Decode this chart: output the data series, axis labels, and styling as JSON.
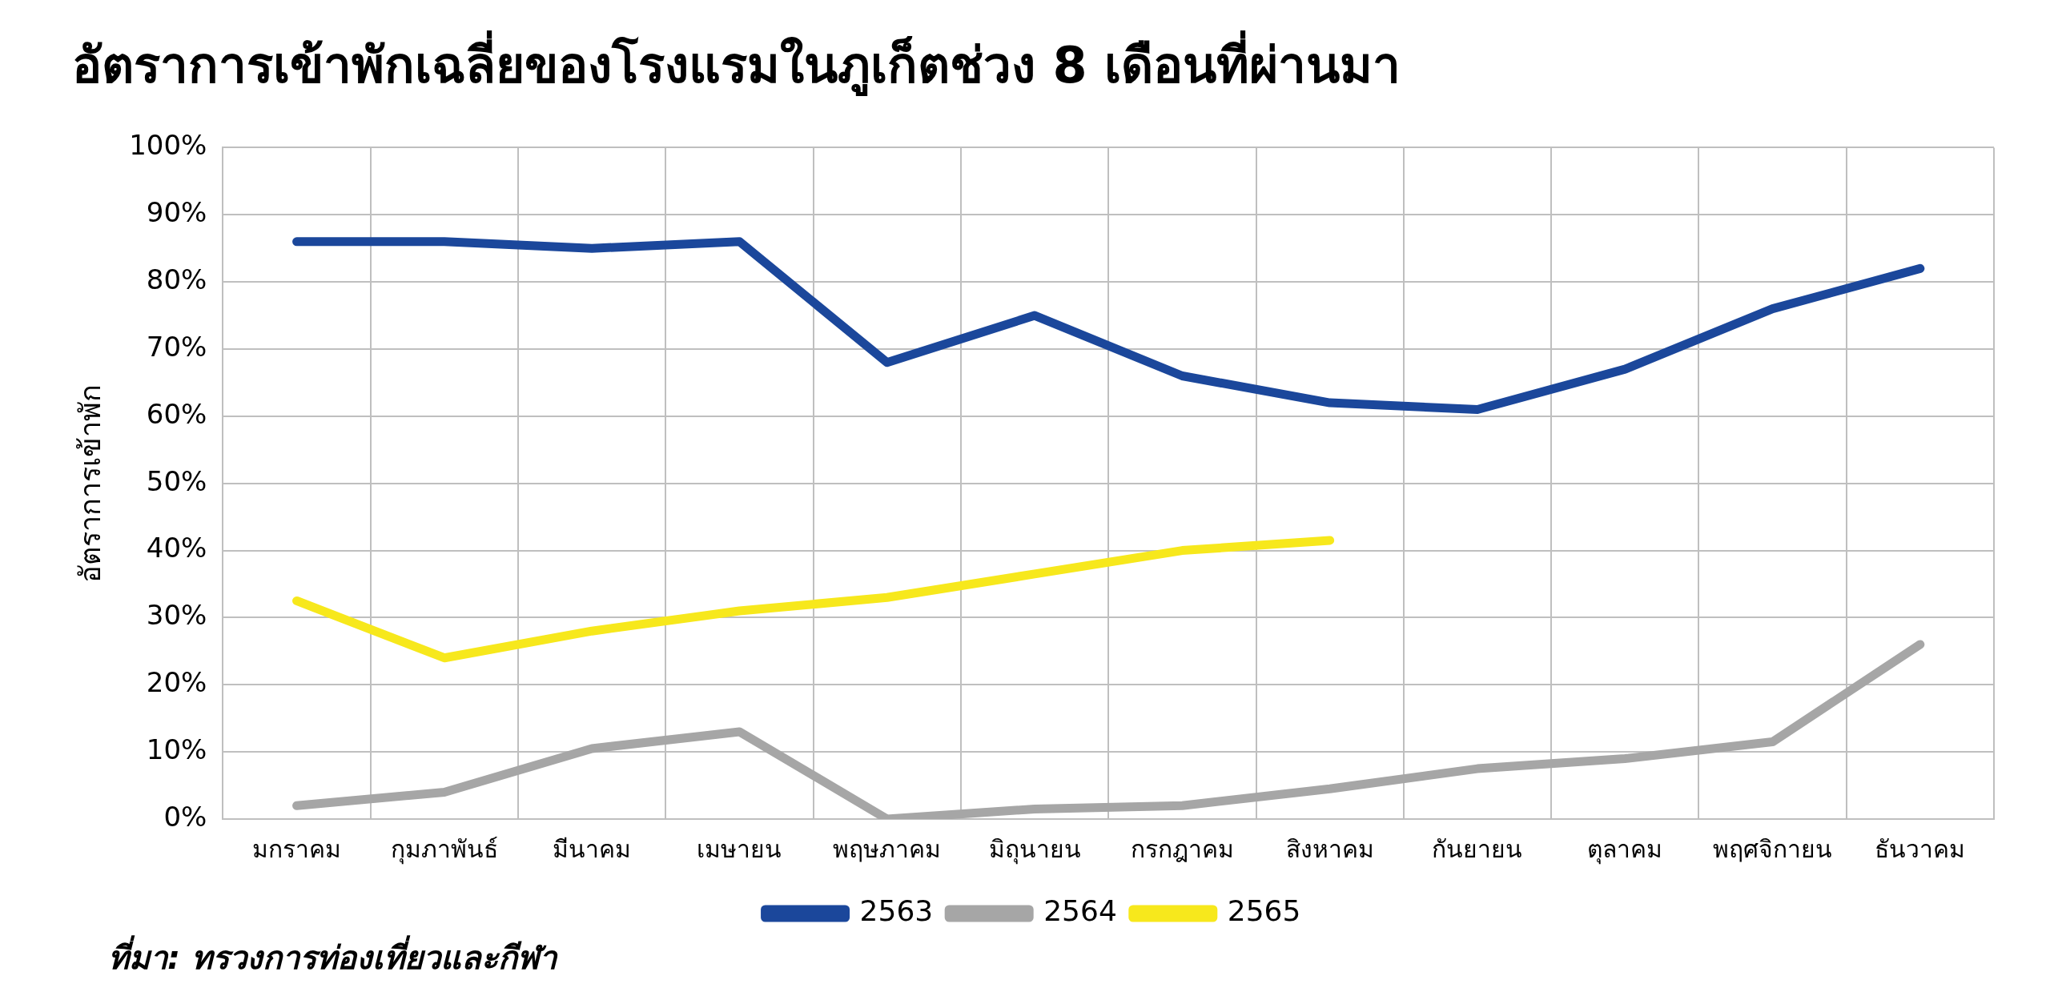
{
  "chart_data": {
    "type": "line",
    "title": "อัตราการเข้าพักเฉลี่ยของโรงแรมในภูเก็ตช่วง 8 เดือนที่ผ่านมา",
    "ylabel": "อัตราการเข้าพัก",
    "categories": [
      "มกราคม",
      "กุมภาพันธ์",
      "มีนาคม",
      "เมษายน",
      "พฤษภาคม",
      "มิถุนายน",
      "กรกฎาคม",
      "สิงหาคม",
      "กันยายน",
      "ตุลาคม",
      "พฤศจิกายน",
      "ธันวาคม"
    ],
    "series": [
      {
        "name": "2563",
        "color": "#1b479b",
        "values": [
          86,
          86,
          85,
          86,
          68,
          75,
          66,
          62,
          61,
          67,
          76,
          82
        ]
      },
      {
        "name": "2564",
        "color": "#a6a6a6",
        "values": [
          2,
          4,
          10.5,
          13,
          0,
          1.5,
          2,
          4.5,
          7.5,
          9,
          11.5,
          26
        ]
      },
      {
        "name": "2565",
        "color": "#f7e81c",
        "values": [
          32.5,
          24,
          28,
          31,
          33,
          36.5,
          40,
          41.5,
          null,
          null,
          null,
          null
        ]
      }
    ],
    "ylim": [
      0,
      100
    ],
    "yticks": [
      {
        "value": 0,
        "label": "0%"
      },
      {
        "value": 10,
        "label": "10%"
      },
      {
        "value": 20,
        "label": "20%"
      },
      {
        "value": 30,
        "label": "30%"
      },
      {
        "value": 40,
        "label": "40%"
      },
      {
        "value": 50,
        "label": "50%"
      },
      {
        "value": 60,
        "label": "60%"
      },
      {
        "value": 70,
        "label": "70%"
      },
      {
        "value": 80,
        "label": "80%"
      },
      {
        "value": 90,
        "label": "90%"
      },
      {
        "value": 100,
        "label": "100%"
      }
    ],
    "grid": true,
    "legend": "bottom",
    "marker": "none",
    "line_style": "solid",
    "annotations": [
      "ที่มา: ทรวงการท่องเที่ยวและกีฬา"
    ]
  }
}
